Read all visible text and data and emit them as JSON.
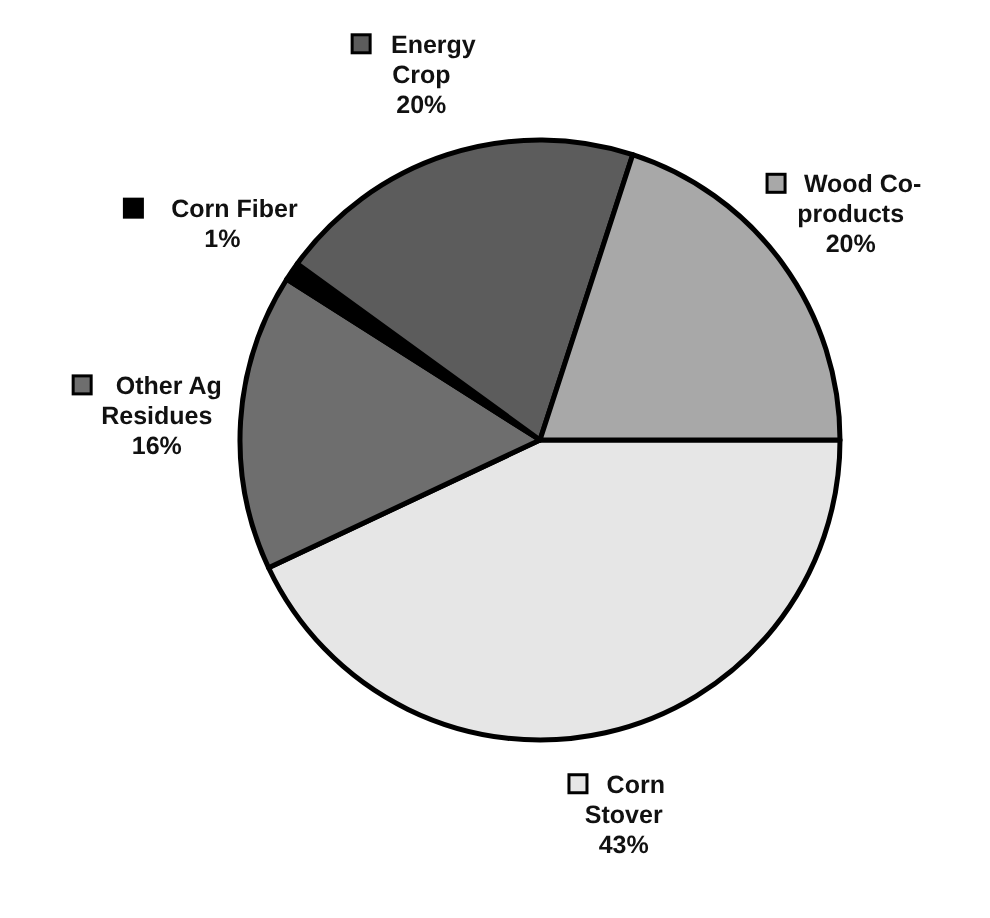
{
  "chart_data": {
    "type": "pie",
    "categories": [
      "Corn Stover",
      "Other Ag Residues",
      "Corn Fiber",
      "Energy Crop",
      "Wood Co-products"
    ],
    "values": [
      43,
      16,
      1,
      20,
      20
    ],
    "value_labels": [
      "43%",
      "16%",
      "1%",
      "20%",
      "20%"
    ],
    "colors": [
      "#e6e6e6",
      "#6e6e6e",
      "#000000",
      "#5c5c5c",
      "#a8a8a8"
    ],
    "legend": true
  }
}
